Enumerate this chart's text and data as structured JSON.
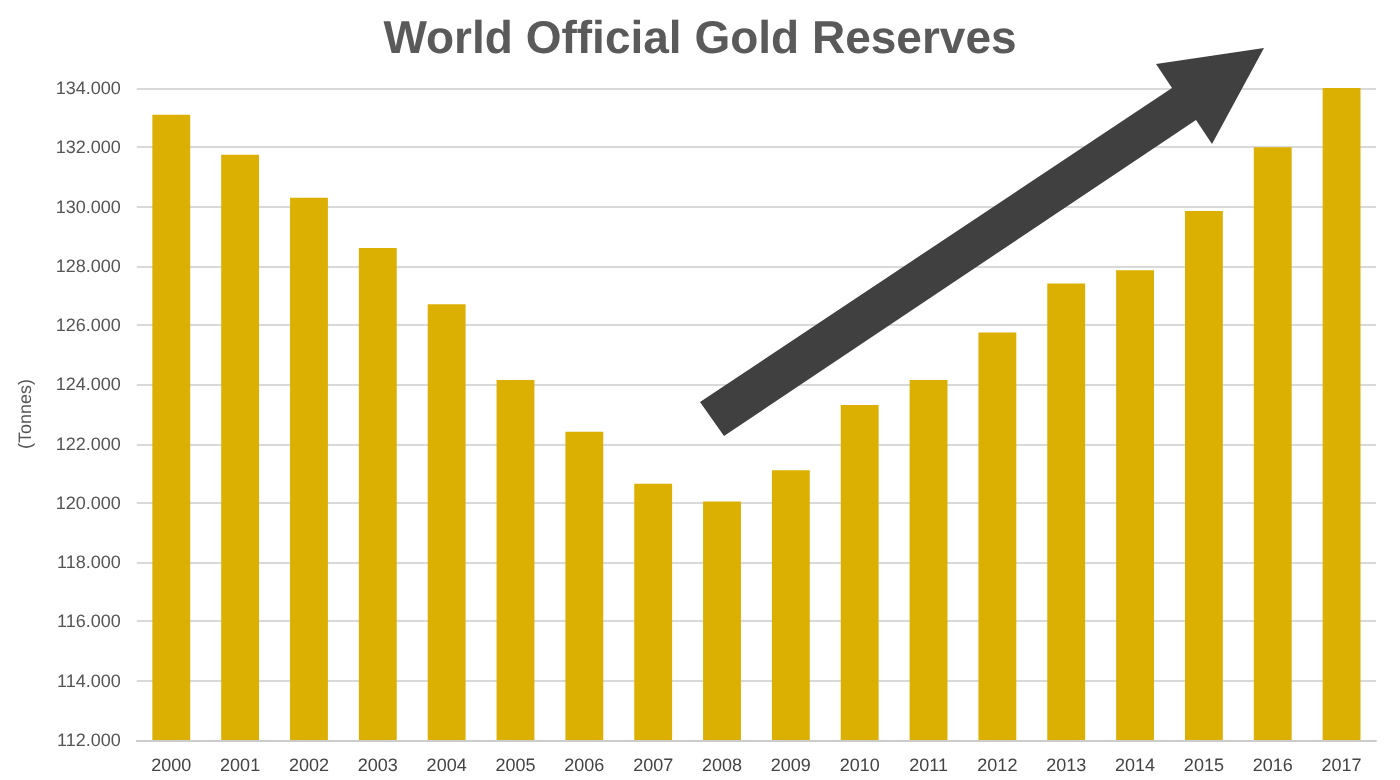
{
  "chart_data": {
    "type": "bar",
    "title": "World Official Gold Reserves",
    "ylabel": "(Tonnes)",
    "categories": [
      "2000",
      "2001",
      "2002",
      "2003",
      "2004",
      "2005",
      "2006",
      "2007",
      "2008",
      "2009",
      "2010",
      "2011",
      "2012",
      "2013",
      "2014",
      "2015",
      "2016",
      "2017"
    ],
    "values": [
      133100,
      131750,
      130300,
      128600,
      126700,
      124150,
      122400,
      120650,
      120050,
      121100,
      123300,
      124150,
      125750,
      127400,
      127850,
      129850,
      132000,
      134000
    ],
    "color": "#dbb003",
    "ylim": [
      112000,
      134000
    ],
    "yticks": [
      {
        "value": 112000,
        "label": "112.000"
      },
      {
        "value": 114000,
        "label": "114.000"
      },
      {
        "value": 116000,
        "label": "116.000"
      },
      {
        "value": 118000,
        "label": "118.000"
      },
      {
        "value": 120000,
        "label": "120.000"
      },
      {
        "value": 122000,
        "label": "122.000"
      },
      {
        "value": 124000,
        "label": "124.000"
      },
      {
        "value": 126000,
        "label": "126.000"
      },
      {
        "value": 128000,
        "label": "128.000"
      },
      {
        "value": 130000,
        "label": "130.000"
      },
      {
        "value": 132000,
        "label": "132.000"
      },
      {
        "value": 134000,
        "label": "134.000"
      }
    ],
    "grid": "y"
  }
}
